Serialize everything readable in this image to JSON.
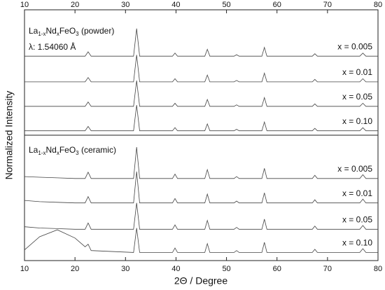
{
  "chart_data": {
    "type": "line",
    "xlabel": "2Θ / Degree",
    "ylabel": "Normalized Intensity",
    "xlim": [
      10,
      80
    ],
    "xticks": [
      10,
      20,
      30,
      40,
      50,
      60,
      70,
      80
    ],
    "ylim": [
      0,
      20
    ],
    "x": [
      10,
      13,
      16.5,
      20,
      22,
      22.6,
      23.2,
      31.6,
      32.2,
      32.8,
      39.3,
      39.8,
      40.3,
      45.7,
      46.2,
      46.7,
      51.5,
      52,
      52.5,
      57,
      57.5,
      58,
      67,
      67.5,
      68,
      76.4,
      77,
      77.6,
      80
    ],
    "panels": [
      {
        "label_parts": [
          "La",
          "1-x",
          "Nd",
          "x",
          "FeO",
          "3",
          " (powder)"
        ],
        "annotation": "λ: 1.54060 Å",
        "series": [
          {
            "name": "x = 0.005",
            "color": "#444444",
            "values": [
              16.3,
              16.3,
              16.3,
              16.3,
              16.3,
              16.65,
              16.3,
              16.3,
              18.5,
              16.3,
              16.3,
              16.55,
              16.3,
              16.3,
              16.85,
              16.3,
              16.3,
              16.42,
              16.3,
              16.3,
              17.0,
              16.3,
              16.3,
              16.5,
              16.3,
              16.3,
              16.55,
              16.3,
              16.3
            ]
          },
          {
            "name": "x = 0.01",
            "color": "#444444",
            "values": [
              14.25,
              14.25,
              14.25,
              14.25,
              14.25,
              14.6,
              14.25,
              14.25,
              16.4,
              14.25,
              14.25,
              14.5,
              14.25,
              14.25,
              14.8,
              14.25,
              14.25,
              14.37,
              14.25,
              14.25,
              14.95,
              14.25,
              14.25,
              14.45,
              14.25,
              14.25,
              14.5,
              14.25,
              14.25
            ]
          },
          {
            "name": "x = 0.05",
            "color": "#444444",
            "values": [
              12.3,
              12.3,
              12.3,
              12.3,
              12.3,
              12.65,
              12.3,
              12.3,
              14.35,
              12.3,
              12.3,
              12.55,
              12.3,
              12.3,
              12.85,
              12.3,
              12.3,
              12.42,
              12.3,
              12.3,
              13.0,
              12.3,
              12.3,
              12.5,
              12.3,
              12.3,
              12.55,
              12.3,
              12.3
            ]
          },
          {
            "name": "x = 0.10",
            "color": "#444444",
            "values": [
              10.35,
              10.35,
              10.35,
              10.35,
              10.35,
              10.7,
              10.35,
              10.35,
              12.4,
              10.35,
              10.35,
              10.6,
              10.35,
              10.35,
              10.9,
              10.35,
              10.35,
              10.47,
              10.35,
              10.35,
              11.05,
              10.35,
              10.35,
              10.55,
              10.35,
              10.35,
              10.6,
              10.35,
              10.35
            ]
          }
        ]
      },
      {
        "label_parts": [
          "La",
          "1-x",
          "Nd",
          "x",
          "FeO",
          "3",
          " (ceramic)"
        ],
        "series": [
          {
            "name": "x = 0.005",
            "color": "#444444",
            "values": [
              6.7,
              6.65,
              6.6,
              6.55,
              6.55,
              7.05,
              6.55,
              6.55,
              9.05,
              6.55,
              6.55,
              6.9,
              6.55,
              6.55,
              7.25,
              6.55,
              6.55,
              6.7,
              6.55,
              6.55,
              7.35,
              6.55,
              6.55,
              6.8,
              6.55,
              6.55,
              6.85,
              6.55,
              6.55
            ]
          },
          {
            "name": "x = 0.01",
            "color": "#444444",
            "values": [
              4.8,
              4.7,
              4.65,
              4.6,
              4.6,
              5.1,
              4.6,
              4.6,
              7.1,
              4.6,
              4.6,
              4.95,
              4.6,
              4.6,
              5.3,
              4.6,
              4.6,
              4.75,
              4.6,
              4.6,
              5.4,
              4.6,
              4.6,
              4.85,
              4.6,
              4.6,
              4.9,
              4.6,
              4.6
            ]
          },
          {
            "name": "x = 0.05",
            "color": "#444444",
            "values": [
              2.7,
              2.6,
              2.55,
              2.5,
              2.5,
              3.0,
              2.5,
              2.5,
              4.6,
              2.5,
              2.5,
              2.85,
              2.5,
              2.5,
              3.2,
              2.5,
              2.5,
              2.65,
              2.5,
              2.5,
              3.3,
              2.5,
              2.5,
              2.75,
              2.5,
              2.5,
              2.8,
              2.5,
              2.5
            ]
          },
          {
            "name": "x = 0.10",
            "color": "#444444",
            "values": [
              0.85,
              1.9,
              2.45,
              1.8,
              1.1,
              1.3,
              0.8,
              0.65,
              2.6,
              0.65,
              0.65,
              1.0,
              0.65,
              0.65,
              1.35,
              0.65,
              0.65,
              0.8,
              0.65,
              0.65,
              1.45,
              0.65,
              0.65,
              0.9,
              0.65,
              0.65,
              0.95,
              0.65,
              0.65
            ]
          }
        ]
      }
    ]
  }
}
